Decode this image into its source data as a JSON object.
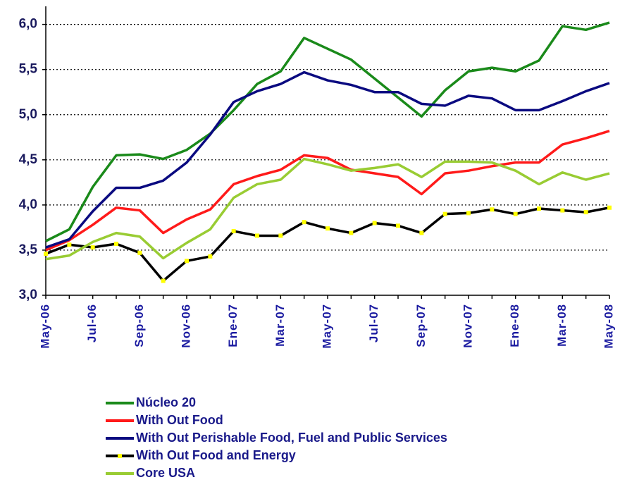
{
  "chart_data": {
    "type": "line",
    "categories": [
      "May-06",
      null,
      "Jul-06",
      null,
      "Sep-06",
      null,
      "Nov-06",
      null,
      "Ene-07",
      null,
      "Mar-07",
      null,
      "May-07",
      null,
      "Jul-07",
      null,
      "Sep-07",
      null,
      "Nov-07",
      null,
      "Ene-08",
      null,
      "Mar-08",
      null,
      "May-08"
    ],
    "ylim": [
      3,
      6.2
    ],
    "yticks": [
      {
        "value": 3,
        "label": "3,0"
      },
      {
        "value": 3.5,
        "label": "3,5"
      },
      {
        "value": 4,
        "label": "4,0"
      },
      {
        "value": 4.5,
        "label": "4,5"
      },
      {
        "value": 5,
        "label": "5,0"
      },
      {
        "value": 5.5,
        "label": "5,5"
      },
      {
        "value": 6,
        "label": "6,0"
      }
    ],
    "grid": true,
    "legend": "bottom",
    "series": [
      {
        "name": "Núcleo 20",
        "color": "#1a8a1a",
        "values": [
          3.6,
          3.73,
          4.2,
          4.55,
          4.56,
          4.51,
          4.61,
          4.79,
          5.05,
          5.34,
          5.48,
          5.85,
          5.73,
          5.61,
          5.4,
          5.19,
          4.98,
          5.27,
          5.48,
          5.52,
          5.48,
          5.6,
          5.98,
          5.94,
          6.02
        ]
      },
      {
        "name": "With Out Food",
        "color": "#ff1a1a",
        "values": [
          3.5,
          3.61,
          3.78,
          3.97,
          3.94,
          3.69,
          3.84,
          3.95,
          4.23,
          4.32,
          4.39,
          4.55,
          4.52,
          4.39,
          4.35,
          4.31,
          4.12,
          4.35,
          4.38,
          4.43,
          4.47,
          4.47,
          4.67,
          4.74,
          4.82
        ]
      },
      {
        "name": "With Out Perishable Food, Fuel and Public Services",
        "color": "#0a0a80",
        "values": [
          3.53,
          3.62,
          3.93,
          4.19,
          4.19,
          4.27,
          4.47,
          4.78,
          5.14,
          5.26,
          5.34,
          5.47,
          5.38,
          5.33,
          5.25,
          5.25,
          5.12,
          5.1,
          5.21,
          5.18,
          5.05,
          5.05,
          5.15,
          5.26,
          5.35
        ]
      },
      {
        "name": "With Out Food and Energy",
        "color": "#000000",
        "marker_color": "#ffff00",
        "values": [
          3.46,
          3.56,
          3.53,
          3.57,
          3.47,
          3.16,
          3.38,
          3.43,
          3.71,
          3.66,
          3.66,
          3.81,
          3.74,
          3.69,
          3.8,
          3.77,
          3.69,
          3.9,
          3.91,
          3.95,
          3.9,
          3.96,
          3.94,
          3.92,
          3.97
        ]
      },
      {
        "name": "Core USA",
        "color": "#99cc33",
        "values": [
          3.4,
          3.44,
          3.59,
          3.69,
          3.65,
          3.41,
          3.58,
          3.73,
          4.08,
          4.23,
          4.28,
          4.51,
          4.45,
          4.38,
          4.41,
          4.45,
          4.31,
          4.48,
          4.48,
          4.47,
          4.38,
          4.23,
          4.36,
          4.28,
          4.35
        ]
      }
    ]
  }
}
